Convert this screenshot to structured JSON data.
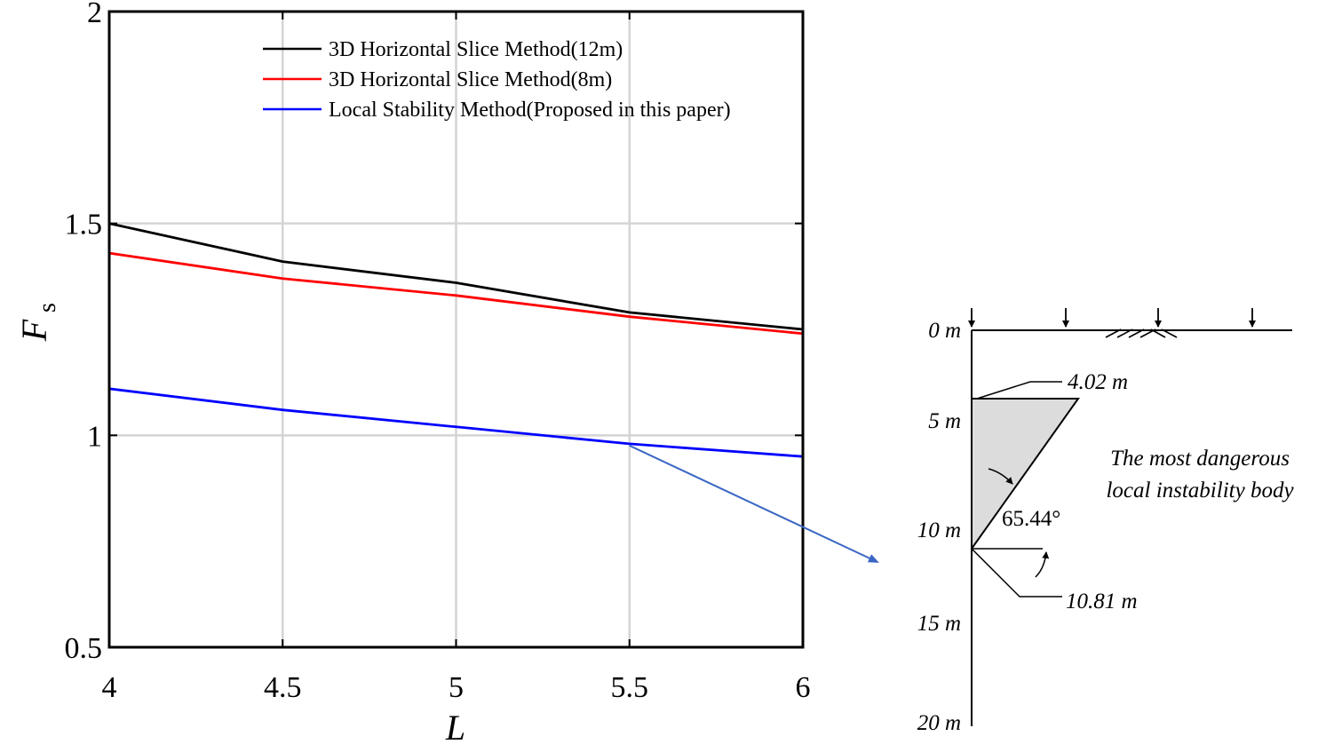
{
  "chart_data": {
    "type": "line",
    "x": [
      4,
      4.5,
      5,
      5.5,
      6
    ],
    "xlim": [
      4,
      6
    ],
    "ylim": [
      0.5,
      2
    ],
    "xticks": [
      "4",
      "4.5",
      "5",
      "5.5",
      "6"
    ],
    "yticks": [
      "0.5",
      "1",
      "1.5",
      "2"
    ],
    "xlabel": "L",
    "ylabel": {
      "main": "F",
      "sub": "s"
    },
    "grid": true,
    "legend_position": "top",
    "series": [
      {
        "name": "3D Horizontal Slice Method(12m)",
        "color": "#000000",
        "values": [
          1.5,
          1.41,
          1.36,
          1.29,
          1.25
        ]
      },
      {
        "name": "3D Horizontal Slice Method(8m)",
        "color": "#ff0000",
        "values": [
          1.43,
          1.37,
          1.33,
          1.28,
          1.24
        ]
      },
      {
        "name": "Local Stability Method(Proposed in this paper)",
        "color": "#0000ff",
        "values": [
          1.11,
          1.06,
          1.02,
          0.98,
          0.95
        ]
      }
    ]
  },
  "annotation": {
    "arrow_color": "#3a66c4",
    "from_point": {
      "x": 5.5,
      "y": 0.98
    }
  },
  "diagram": {
    "depth_labels": [
      "0 m",
      "5 m",
      "10 m",
      "15 m",
      "20 m"
    ],
    "top_width_label": "4.02 m",
    "bottom_depth_label": "10.81 m",
    "angle_label": "65.44°",
    "caption_line1": "The most dangerous",
    "caption_line2": "local instability body",
    "body_fill": "#dcdcdc"
  }
}
